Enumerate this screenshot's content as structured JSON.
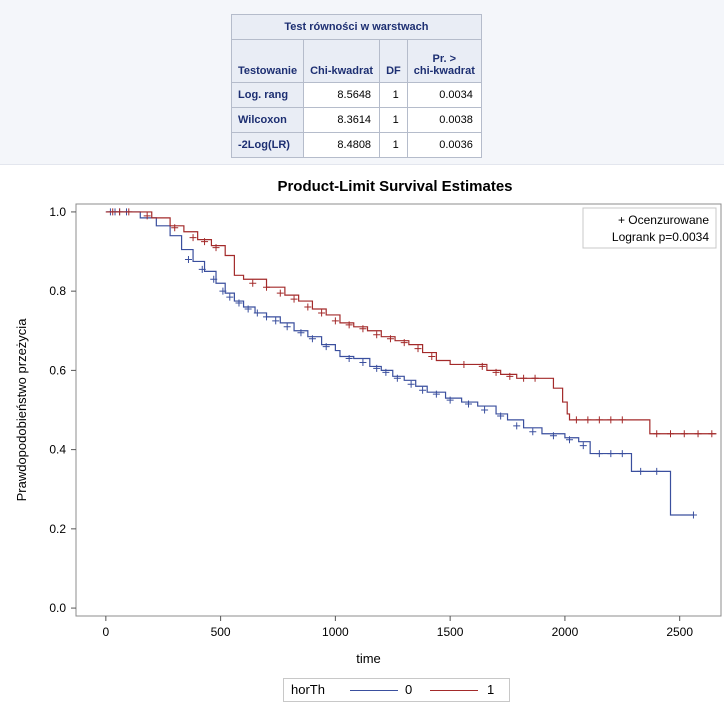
{
  "stats_table": {
    "caption": "Test równości w warstwach",
    "headers": [
      "Testowanie",
      "Chi-kwadrat",
      "DF",
      "Pr. >",
      "chi-kwadrat"
    ],
    "rows": [
      {
        "test": "Log. rang",
        "chisq": "8.5648",
        "df": "1",
        "p": "0.0034"
      },
      {
        "test": "Wilcoxon",
        "chisq": "8.3614",
        "df": "1",
        "p": "0.0038"
      },
      {
        "test": "-2Log(LR)",
        "chisq": "8.4808",
        "df": "1",
        "p": "0.0036"
      }
    ]
  },
  "chart_data": {
    "type": "line",
    "title": "Product-Limit Survival Estimates",
    "xlabel": "time",
    "ylabel": "Prawdopodobieństwo przeżycia",
    "xlim": [
      -130,
      2680
    ],
    "ylim": [
      -0.02,
      1.02
    ],
    "xticks": [
      0,
      500,
      1000,
      1500,
      2000,
      2500
    ],
    "yticks": [
      0.0,
      0.2,
      0.4,
      0.6,
      0.8,
      1.0
    ],
    "inset_legend": {
      "marker": "+",
      "label": "Ocenzurowane",
      "note": "Logrank p=0.0034"
    },
    "legend": {
      "title": "horTh",
      "position": "bottom"
    },
    "series": [
      {
        "name": "0",
        "color": "#3a4f9e",
        "points": [
          [
            0,
            1.0
          ],
          [
            80,
            1.0
          ],
          [
            150,
            0.985
          ],
          [
            220,
            0.965
          ],
          [
            280,
            0.94
          ],
          [
            330,
            0.905
          ],
          [
            380,
            0.875
          ],
          [
            430,
            0.85
          ],
          [
            480,
            0.82
          ],
          [
            520,
            0.795
          ],
          [
            560,
            0.775
          ],
          [
            600,
            0.76
          ],
          [
            650,
            0.745
          ],
          [
            700,
            0.735
          ],
          [
            760,
            0.72
          ],
          [
            820,
            0.7
          ],
          [
            880,
            0.685
          ],
          [
            940,
            0.665
          ],
          [
            1000,
            0.65
          ],
          [
            1020,
            0.635
          ],
          [
            1080,
            0.63
          ],
          [
            1150,
            0.61
          ],
          [
            1200,
            0.6
          ],
          [
            1250,
            0.585
          ],
          [
            1300,
            0.575
          ],
          [
            1350,
            0.56
          ],
          [
            1400,
            0.545
          ],
          [
            1480,
            0.53
          ],
          [
            1550,
            0.52
          ],
          [
            1620,
            0.51
          ],
          [
            1700,
            0.49
          ],
          [
            1750,
            0.475
          ],
          [
            1820,
            0.455
          ],
          [
            1900,
            0.44
          ],
          [
            2000,
            0.43
          ],
          [
            2060,
            0.42
          ],
          [
            2110,
            0.39
          ],
          [
            2280,
            0.39
          ],
          [
            2290,
            0.345
          ],
          [
            2450,
            0.345
          ],
          [
            2460,
            0.235
          ],
          [
            2560,
            0.235
          ]
        ],
        "censored": [
          [
            20,
            1.0
          ],
          [
            40,
            1.0
          ],
          [
            60,
            1.0
          ],
          [
            90,
            1.0
          ],
          [
            360,
            0.88
          ],
          [
            420,
            0.855
          ],
          [
            470,
            0.83
          ],
          [
            510,
            0.8
          ],
          [
            540,
            0.785
          ],
          [
            580,
            0.77
          ],
          [
            620,
            0.755
          ],
          [
            660,
            0.745
          ],
          [
            700,
            0.735
          ],
          [
            740,
            0.725
          ],
          [
            790,
            0.71
          ],
          [
            850,
            0.695
          ],
          [
            900,
            0.68
          ],
          [
            960,
            0.66
          ],
          [
            1060,
            0.63
          ],
          [
            1120,
            0.62
          ],
          [
            1180,
            0.605
          ],
          [
            1220,
            0.595
          ],
          [
            1270,
            0.58
          ],
          [
            1330,
            0.565
          ],
          [
            1380,
            0.55
          ],
          [
            1440,
            0.54
          ],
          [
            1500,
            0.525
          ],
          [
            1580,
            0.515
          ],
          [
            1650,
            0.5
          ],
          [
            1720,
            0.485
          ],
          [
            1790,
            0.46
          ],
          [
            1860,
            0.445
          ],
          [
            1950,
            0.435
          ],
          [
            2020,
            0.425
          ],
          [
            2080,
            0.41
          ],
          [
            2150,
            0.39
          ],
          [
            2200,
            0.39
          ],
          [
            2250,
            0.39
          ],
          [
            2330,
            0.345
          ],
          [
            2400,
            0.345
          ],
          [
            2560,
            0.235
          ]
        ]
      },
      {
        "name": "1",
        "color": "#a32a2a",
        "points": [
          [
            0,
            1.0
          ],
          [
            150,
            1.0
          ],
          [
            200,
            0.985
          ],
          [
            280,
            0.965
          ],
          [
            340,
            0.95
          ],
          [
            400,
            0.93
          ],
          [
            460,
            0.915
          ],
          [
            520,
            0.89
          ],
          [
            560,
            0.84
          ],
          [
            600,
            0.83
          ],
          [
            700,
            0.81
          ],
          [
            780,
            0.79
          ],
          [
            840,
            0.775
          ],
          [
            900,
            0.755
          ],
          [
            960,
            0.74
          ],
          [
            1020,
            0.72
          ],
          [
            1080,
            0.71
          ],
          [
            1140,
            0.7
          ],
          [
            1200,
            0.685
          ],
          [
            1260,
            0.675
          ],
          [
            1320,
            0.665
          ],
          [
            1380,
            0.645
          ],
          [
            1440,
            0.625
          ],
          [
            1500,
            0.615
          ],
          [
            1620,
            0.615
          ],
          [
            1660,
            0.6
          ],
          [
            1720,
            0.59
          ],
          [
            1790,
            0.58
          ],
          [
            1900,
            0.58
          ],
          [
            1950,
            0.555
          ],
          [
            1990,
            0.52
          ],
          [
            2010,
            0.49
          ],
          [
            2020,
            0.475
          ],
          [
            2360,
            0.475
          ],
          [
            2370,
            0.44
          ],
          [
            2660,
            0.44
          ]
        ],
        "censored": [
          [
            30,
            1.0
          ],
          [
            60,
            1.0
          ],
          [
            100,
            1.0
          ],
          [
            180,
            0.99
          ],
          [
            300,
            0.96
          ],
          [
            380,
            0.935
          ],
          [
            430,
            0.925
          ],
          [
            480,
            0.91
          ],
          [
            640,
            0.82
          ],
          [
            700,
            0.81
          ],
          [
            760,
            0.795
          ],
          [
            820,
            0.78
          ],
          [
            880,
            0.76
          ],
          [
            940,
            0.745
          ],
          [
            1000,
            0.725
          ],
          [
            1060,
            0.715
          ],
          [
            1120,
            0.705
          ],
          [
            1180,
            0.69
          ],
          [
            1240,
            0.68
          ],
          [
            1300,
            0.67
          ],
          [
            1360,
            0.655
          ],
          [
            1420,
            0.635
          ],
          [
            1560,
            0.615
          ],
          [
            1640,
            0.61
          ],
          [
            1700,
            0.595
          ],
          [
            1760,
            0.585
          ],
          [
            1820,
            0.58
          ],
          [
            1870,
            0.58
          ],
          [
            2050,
            0.475
          ],
          [
            2100,
            0.475
          ],
          [
            2150,
            0.475
          ],
          [
            2200,
            0.475
          ],
          [
            2250,
            0.475
          ],
          [
            2400,
            0.44
          ],
          [
            2460,
            0.44
          ],
          [
            2520,
            0.44
          ],
          [
            2580,
            0.44
          ],
          [
            2640,
            0.44
          ]
        ]
      }
    ]
  }
}
